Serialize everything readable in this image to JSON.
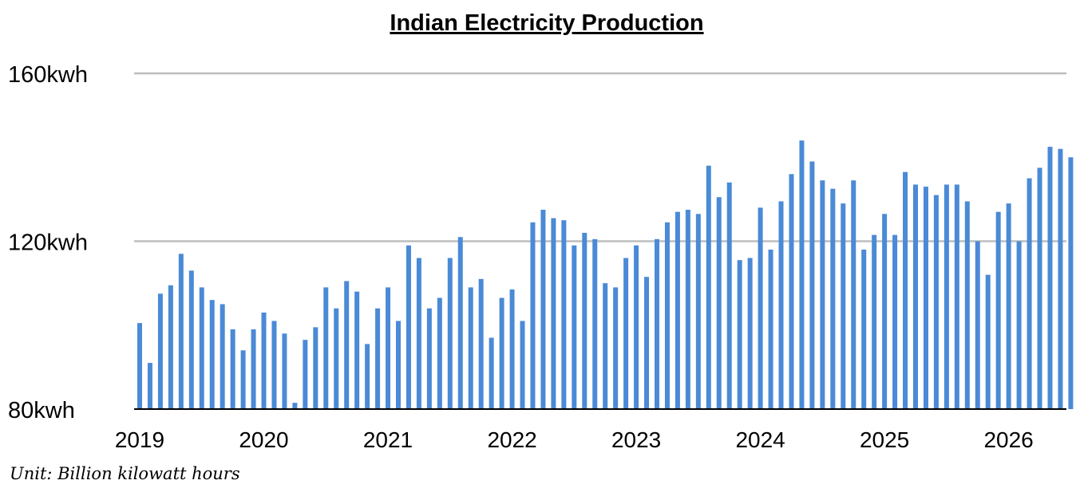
{
  "chart_data": {
    "type": "bar",
    "title": "Indian Electricity Production",
    "unit_note": "Unit: Billion kilowatt hours",
    "xlabel": "",
    "ylabel": "",
    "ylim": [
      80,
      160
    ],
    "yticks": [
      {
        "value": 80,
        "label": "80kwh"
      },
      {
        "value": 120,
        "label": "120kwh"
      },
      {
        "value": 160,
        "label": "160kwh"
      }
    ],
    "year_labels": [
      "2019",
      "2020",
      "2021",
      "2022",
      "2023",
      "2024",
      "2025",
      "2026"
    ],
    "grid": true,
    "color": "#4a8ad6",
    "series": [
      {
        "values": [
          100.5,
          91,
          107.5,
          109.5,
          117,
          113,
          109,
          106,
          105,
          99,
          94,
          99,
          103,
          101,
          98,
          81.5,
          96.5,
          99.5,
          109,
          104,
          110.5,
          108,
          95.5,
          104,
          109,
          101,
          119,
          116,
          104,
          106.5,
          116,
          121,
          109,
          111,
          97,
          106.5,
          108.5,
          101,
          124.5,
          127.5,
          125.5,
          125,
          119,
          122,
          120.5,
          110,
          109,
          116,
          119,
          111.5,
          120.5,
          124.5,
          127,
          127.5,
          126.5,
          138,
          130.5,
          134,
          115.5,
          116,
          128,
          118,
          129.5,
          136,
          144,
          139,
          134.5,
          132.5,
          129,
          134.5,
          118,
          121.5,
          126.5,
          121.5,
          136.5,
          133.5,
          133,
          131,
          133.5,
          133.5,
          129.5,
          120,
          112,
          127,
          129,
          120,
          135,
          137.5,
          142.5,
          142,
          140
        ]
      }
    ]
  }
}
